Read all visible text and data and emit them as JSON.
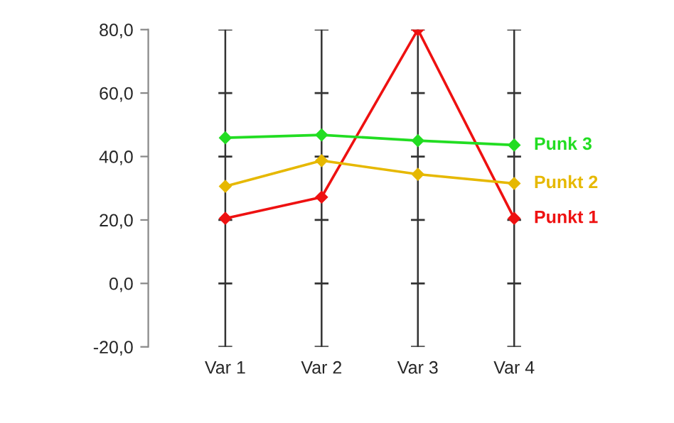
{
  "chart_data": {
    "type": "line",
    "categories": [
      "Var 1",
      "Var 2",
      "Var 3",
      "Var 4"
    ],
    "series": [
      {
        "name": "Punkt 1",
        "color": "#ee1111",
        "values": [
          20.5,
          27.2,
          80,
          20.5
        ]
      },
      {
        "name": "Punkt 2",
        "color": "#e6b800",
        "values": [
          30.6,
          38.7,
          34.4,
          31.5
        ]
      },
      {
        "name": "Punk 3",
        "color": "#22dd22",
        "values": [
          45.9,
          46.8,
          45.0,
          43.6
        ]
      }
    ],
    "ylim": [
      -20,
      80
    ],
    "yticks": [
      {
        "value": -20,
        "label": "-20,0"
      },
      {
        "value": 0,
        "label": "0,0"
      },
      {
        "value": 20,
        "label": "20,0"
      },
      {
        "value": 40,
        "label": "40,0"
      },
      {
        "value": 60,
        "label": "60,0"
      },
      {
        "value": 80,
        "label": "80,0"
      }
    ],
    "grid": "x",
    "marker": "diamond",
    "line_style": "solid",
    "legend": "right"
  }
}
